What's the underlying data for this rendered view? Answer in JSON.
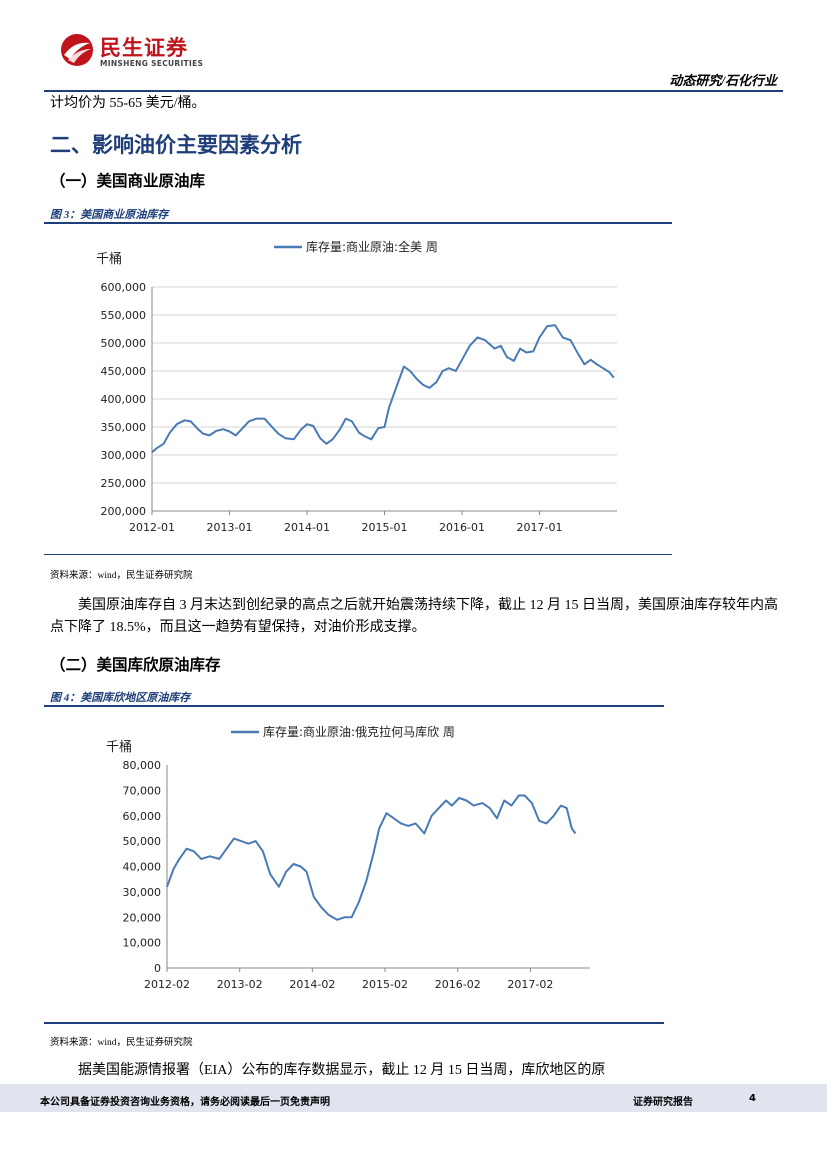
{
  "header": {
    "logo_cn": "民生证券",
    "logo_en": "MINSHENG SECURITIES",
    "section": "动态研究/石化行业"
  },
  "top_text": "计均价为 55-65 美元/桶。",
  "section_title": "二、影响油价主要因素分析",
  "sub1_title": "（一）美国商业原油库",
  "fig3_caption": "图 3：美国商业原油库存",
  "fig3_source": "资料来源：wind，民生证券研究院",
  "para1": "美国原油库存自 3 月末达到创纪录的高点之后就开始震荡持续下降，截止 12 月 15 日当周，美国原油库存较年内高点下降了 18.5%，而且这一趋势有望保持，对油价形成支撑。",
  "sub2_title": "（二）美国库欣原油库存",
  "fig4_caption": "图 4：美国库欣地区原油库存",
  "fig4_source": "资料来源：wind，民生证券研究院",
  "para2": "据美国能源情报署（EIA）公布的库存数据显示，截止 12 月 15 日当周，库欣地区的原",
  "footer": {
    "disclaimer": "本公司具备证券投资咨询业务资格，请务必阅读最后一页免责声明",
    "report_type": "证券研究报告",
    "page": "4"
  },
  "chart_data": [
    {
      "type": "line",
      "unit_label": "千桶",
      "legend_position": "top-center",
      "grid": true,
      "color": "#4a7ab5",
      "ylim": [
        200000,
        600000
      ],
      "yticks": [
        "600,000",
        "550,000",
        "500,000",
        "450,000",
        "400,000",
        "350,000",
        "300,000",
        "250,000",
        "200,000"
      ],
      "xticks": [
        "2012-01",
        "2013-01",
        "2014-01",
        "2015-01",
        "2016-01",
        "2017-01"
      ],
      "series": [
        {
          "name": "库存量:商业原油:全美 周",
          "points": [
            [
              2012.0,
              305000
            ],
            [
              2012.06,
              312000
            ],
            [
              2012.15,
              320000
            ],
            [
              2012.23,
              340000
            ],
            [
              2012.32,
              355000
            ],
            [
              2012.42,
              362000
            ],
            [
              2012.5,
              360000
            ],
            [
              2012.58,
              348000
            ],
            [
              2012.66,
              338000
            ],
            [
              2012.74,
              335000
            ],
            [
              2012.83,
              343000
            ],
            [
              2012.92,
              346000
            ],
            [
              2013.0,
              342000
            ],
            [
              2013.08,
              335000
            ],
            [
              2013.17,
              348000
            ],
            [
              2013.25,
              360000
            ],
            [
              2013.35,
              365000
            ],
            [
              2013.45,
              365000
            ],
            [
              2013.55,
              350000
            ],
            [
              2013.63,
              338000
            ],
            [
              2013.72,
              330000
            ],
            [
              2013.83,
              328000
            ],
            [
              2013.92,
              345000
            ],
            [
              2014.0,
              355000
            ],
            [
              2014.08,
              352000
            ],
            [
              2014.17,
              330000
            ],
            [
              2014.25,
              320000
            ],
            [
              2014.33,
              328000
            ],
            [
              2014.42,
              345000
            ],
            [
              2014.5,
              365000
            ],
            [
              2014.58,
              360000
            ],
            [
              2014.67,
              340000
            ],
            [
              2014.75,
              333000
            ],
            [
              2014.83,
              328000
            ],
            [
              2014.92,
              348000
            ],
            [
              2015.0,
              350000
            ],
            [
              2015.06,
              385000
            ],
            [
              2015.15,
              420000
            ],
            [
              2015.25,
              458000
            ],
            [
              2015.33,
              450000
            ],
            [
              2015.42,
              435000
            ],
            [
              2015.5,
              425000
            ],
            [
              2015.58,
              420000
            ],
            [
              2015.67,
              430000
            ],
            [
              2015.75,
              450000
            ],
            [
              2015.83,
              455000
            ],
            [
              2015.92,
              450000
            ],
            [
              2016.0,
              470000
            ],
            [
              2016.1,
              495000
            ],
            [
              2016.2,
              510000
            ],
            [
              2016.3,
              505000
            ],
            [
              2016.42,
              490000
            ],
            [
              2016.5,
              495000
            ],
            [
              2016.58,
              475000
            ],
            [
              2016.67,
              468000
            ],
            [
              2016.75,
              490000
            ],
            [
              2016.83,
              483000
            ],
            [
              2016.92,
              485000
            ],
            [
              2017.0,
              510000
            ],
            [
              2017.1,
              530000
            ],
            [
              2017.2,
              532000
            ],
            [
              2017.3,
              510000
            ],
            [
              2017.4,
              505000
            ],
            [
              2017.5,
              480000
            ],
            [
              2017.58,
              462000
            ],
            [
              2017.66,
              470000
            ],
            [
              2017.74,
              462000
            ],
            [
              2017.82,
              455000
            ],
            [
              2017.9,
              448000
            ],
            [
              2017.96,
              438000
            ]
          ]
        }
      ]
    },
    {
      "type": "line",
      "unit_label": "千桶",
      "legend_position": "top-center",
      "grid": false,
      "color": "#4a7ab5",
      "ylim": [
        0,
        80000
      ],
      "yticks": [
        "80,000",
        "70,000",
        "60,000",
        "50,000",
        "40,000",
        "30,000",
        "20,000",
        "10,000",
        "0"
      ],
      "xticks": [
        "2012-02",
        "2013-02",
        "2014-02",
        "2015-02",
        "2016-02",
        "2017-02"
      ],
      "series": [
        {
          "name": "库存量:商业原油:俄克拉何马库欣 周",
          "points": [
            [
              2012.08,
              32000
            ],
            [
              2012.17,
              39000
            ],
            [
              2012.25,
              43000
            ],
            [
              2012.35,
              47000
            ],
            [
              2012.45,
              46000
            ],
            [
              2012.55,
              43000
            ],
            [
              2012.67,
              44000
            ],
            [
              2012.8,
              43000
            ],
            [
              2012.9,
              47000
            ],
            [
              2013.0,
              51000
            ],
            [
              2013.1,
              50000
            ],
            [
              2013.2,
              49000
            ],
            [
              2013.3,
              50000
            ],
            [
              2013.4,
              46000
            ],
            [
              2013.5,
              37000
            ],
            [
              2013.62,
              32000
            ],
            [
              2013.72,
              38000
            ],
            [
              2013.82,
              41000
            ],
            [
              2013.92,
              40000
            ],
            [
              2014.0,
              38000
            ],
            [
              2014.1,
              28000
            ],
            [
              2014.2,
              24000
            ],
            [
              2014.3,
              21000
            ],
            [
              2014.42,
              19000
            ],
            [
              2014.52,
              20000
            ],
            [
              2014.62,
              20000
            ],
            [
              2014.72,
              26000
            ],
            [
              2014.82,
              34000
            ],
            [
              2014.92,
              45000
            ],
            [
              2015.0,
              55000
            ],
            [
              2015.1,
              61000
            ],
            [
              2015.2,
              59000
            ],
            [
              2015.3,
              57000
            ],
            [
              2015.4,
              56000
            ],
            [
              2015.5,
              57000
            ],
            [
              2015.62,
              53000
            ],
            [
              2015.72,
              60000
            ],
            [
              2015.82,
              63000
            ],
            [
              2015.92,
              66000
            ],
            [
              2016.0,
              64000
            ],
            [
              2016.1,
              67000
            ],
            [
              2016.2,
              66000
            ],
            [
              2016.3,
              64000
            ],
            [
              2016.42,
              65000
            ],
            [
              2016.52,
              63000
            ],
            [
              2016.62,
              59000
            ],
            [
              2016.72,
              66000
            ],
            [
              2016.82,
              64000
            ],
            [
              2016.92,
              68000
            ],
            [
              2017.0,
              68000
            ],
            [
              2017.1,
              65000
            ],
            [
              2017.2,
              58000
            ],
            [
              2017.3,
              57000
            ],
            [
              2017.4,
              60000
            ],
            [
              2017.5,
              64000
            ],
            [
              2017.58,
              63000
            ],
            [
              2017.65,
              55000
            ],
            [
              2017.7,
              53000
            ]
          ]
        }
      ]
    }
  ]
}
